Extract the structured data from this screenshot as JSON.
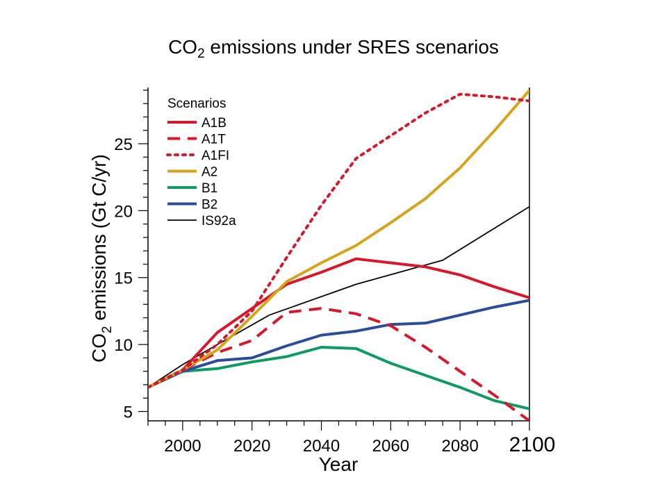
{
  "chart_data": {
    "type": "line",
    "title": {
      "main": "CO",
      "sub": "2",
      "rest": " emissions under SRES scenarios"
    },
    "xlabel": "Year",
    "ylabel": {
      "main": "CO",
      "sub": "2",
      "rest": " emissions (Gt C/yr)"
    },
    "xlim": [
      1990,
      2100
    ],
    "ylim": [
      4.3,
      29.2
    ],
    "x_ticks": [
      {
        "value": 2000,
        "label": "2000"
      },
      {
        "value": 2020,
        "label": "2020"
      },
      {
        "value": 2040,
        "label": "2040"
      },
      {
        "value": 2060,
        "label": "2060"
      },
      {
        "value": 2080,
        "label": "2080"
      },
      {
        "value": 2100,
        "label": "2100"
      }
    ],
    "y_ticks": [
      {
        "value": 5,
        "label": "5"
      },
      {
        "value": 10,
        "label": "10"
      },
      {
        "value": 15,
        "label": "15"
      },
      {
        "value": 20,
        "label": "20"
      },
      {
        "value": 25,
        "label": "25"
      }
    ],
    "x_minor_step": 5,
    "y_minor_step": 1,
    "grid": false,
    "legend": {
      "title": "Scenarios",
      "position": "top-left"
    },
    "series": [
      {
        "name": "A1B",
        "color": "#d7182a",
        "dash": "solid",
        "points": [
          [
            1990,
            6.8
          ],
          [
            2000,
            8.1
          ],
          [
            2010,
            10.9
          ],
          [
            2020,
            12.7
          ],
          [
            2030,
            14.5
          ],
          [
            2040,
            15.4
          ],
          [
            2050,
            16.4
          ],
          [
            2060,
            16.1
          ],
          [
            2070,
            15.8
          ],
          [
            2080,
            15.2
          ],
          [
            2090,
            14.3
          ],
          [
            2100,
            13.5
          ]
        ]
      },
      {
        "name": "A1T",
        "color": "#d7182a",
        "dash": "dashed",
        "points": [
          [
            1990,
            6.8
          ],
          [
            2000,
            8.1
          ],
          [
            2010,
            9.4
          ],
          [
            2020,
            10.3
          ],
          [
            2030,
            12.4
          ],
          [
            2040,
            12.7
          ],
          [
            2050,
            12.3
          ],
          [
            2060,
            11.4
          ],
          [
            2070,
            9.8
          ],
          [
            2080,
            8.0
          ],
          [
            2090,
            6.2
          ],
          [
            2100,
            4.3
          ]
        ]
      },
      {
        "name": "A1FI",
        "color": "#d7182a",
        "dash": "dotted",
        "points": [
          [
            1990,
            6.8
          ],
          [
            2000,
            8.1
          ],
          [
            2010,
            10.0
          ],
          [
            2020,
            12.5
          ],
          [
            2030,
            16.5
          ],
          [
            2040,
            20.4
          ],
          [
            2050,
            23.9
          ],
          [
            2060,
            25.6
          ],
          [
            2070,
            27.3
          ],
          [
            2080,
            28.7
          ],
          [
            2090,
            28.5
          ],
          [
            2100,
            28.2
          ]
        ]
      },
      {
        "name": "A2",
        "color": "#d6a41a",
        "dash": "solid",
        "points": [
          [
            1990,
            6.8
          ],
          [
            2000,
            8.1
          ],
          [
            2010,
            9.6
          ],
          [
            2020,
            12.1
          ],
          [
            2030,
            14.7
          ],
          [
            2040,
            16.1
          ],
          [
            2050,
            17.4
          ],
          [
            2060,
            19.1
          ],
          [
            2070,
            20.9
          ],
          [
            2080,
            23.2
          ],
          [
            2090,
            26.0
          ],
          [
            2100,
            29.0
          ]
        ]
      },
      {
        "name": "B1",
        "color": "#0f9a62",
        "dash": "solid",
        "points": [
          [
            1990,
            6.8
          ],
          [
            2000,
            8.0
          ],
          [
            2010,
            8.2
          ],
          [
            2020,
            8.7
          ],
          [
            2030,
            9.1
          ],
          [
            2040,
            9.8
          ],
          [
            2050,
            9.7
          ],
          [
            2060,
            8.6
          ],
          [
            2070,
            7.7
          ],
          [
            2080,
            6.8
          ],
          [
            2090,
            5.8
          ],
          [
            2100,
            5.2
          ]
        ]
      },
      {
        "name": "B2",
        "color": "#2b4c9b",
        "dash": "solid",
        "points": [
          [
            1990,
            6.8
          ],
          [
            2000,
            8.0
          ],
          [
            2010,
            8.8
          ],
          [
            2020,
            9.0
          ],
          [
            2030,
            9.9
          ],
          [
            2040,
            10.7
          ],
          [
            2050,
            11.0
          ],
          [
            2060,
            11.5
          ],
          [
            2070,
            11.6
          ],
          [
            2080,
            12.2
          ],
          [
            2090,
            12.8
          ],
          [
            2100,
            13.3
          ]
        ]
      },
      {
        "name": "IS92a",
        "color": "#000000",
        "dash": "thin",
        "points": [
          [
            1990,
            6.8
          ],
          [
            2000,
            8.5
          ],
          [
            2010,
            10.0
          ],
          [
            2025,
            12.2
          ],
          [
            2050,
            14.5
          ],
          [
            2075,
            16.3
          ],
          [
            2100,
            20.3
          ]
        ]
      }
    ]
  }
}
